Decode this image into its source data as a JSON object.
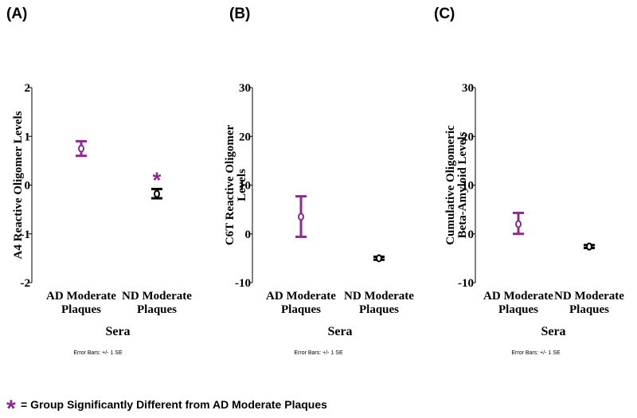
{
  "colors": {
    "ad": "#8b2b8f",
    "nd": "#000000",
    "star": "#8b2b8f"
  },
  "legend": {
    "marker": "*",
    "text": "= Group Significantly Different from AD Moderate Plaques"
  },
  "chart_data": [
    {
      "type": "scatter",
      "panel_label": "(A)",
      "xlabel": "Sera",
      "ylabel": "A4 Reactive Oligomer Levels",
      "ylim": [
        -2,
        2
      ],
      "yticks": [
        -2,
        -1,
        0,
        1,
        2
      ],
      "error_note": "Error Bars: +/- 1 SE",
      "groups": [
        {
          "label": [
            "AD Moderate",
            "Plaques"
          ],
          "mean": 0.75,
          "se_low": 0.6,
          "se_high": 0.9,
          "color_key": "ad",
          "significant": false
        },
        {
          "label": [
            "ND Moderate",
            "Plaques"
          ],
          "mean": -0.18,
          "se_low": -0.27,
          "se_high": -0.08,
          "color_key": "nd",
          "significant": true
        }
      ]
    },
    {
      "type": "scatter",
      "panel_label": "(B)",
      "xlabel": "Sera",
      "ylabel": "C6T Reactive Oligomer Levels",
      "ylim": [
        -10,
        30
      ],
      "yticks": [
        -10,
        0,
        10,
        20,
        30
      ],
      "error_note": "Error Bars: +/- 1 SE",
      "groups": [
        {
          "label": [
            "AD Moderate",
            "Plaques"
          ],
          "mean": 3.5,
          "se_low": -0.6,
          "se_high": 7.7,
          "color_key": "ad",
          "significant": false
        },
        {
          "label": [
            "ND Moderate",
            "Plaques"
          ],
          "mean": -5.0,
          "se_low": -5.3,
          "se_high": -4.7,
          "color_key": "nd",
          "significant": false
        }
      ]
    },
    {
      "type": "scatter",
      "panel_label": "(C)",
      "xlabel": "Sera",
      "ylabel": "Cumulative Oligomeric Beta-Amyloid Levels",
      "ylim": [
        -10,
        30
      ],
      "yticks": [
        -10,
        0,
        10,
        20,
        30
      ],
      "error_note": "Error Bars: +/- 1 SE",
      "groups": [
        {
          "label": [
            "AD Moderate",
            "Plaques"
          ],
          "mean": 2.0,
          "se_low": 0.0,
          "se_high": 4.3,
          "color_key": "ad",
          "significant": false
        },
        {
          "label": [
            "ND Moderate",
            "Plaques"
          ],
          "mean": -2.6,
          "se_low": -2.9,
          "se_high": -2.3,
          "color_key": "nd",
          "significant": false
        }
      ]
    }
  ]
}
